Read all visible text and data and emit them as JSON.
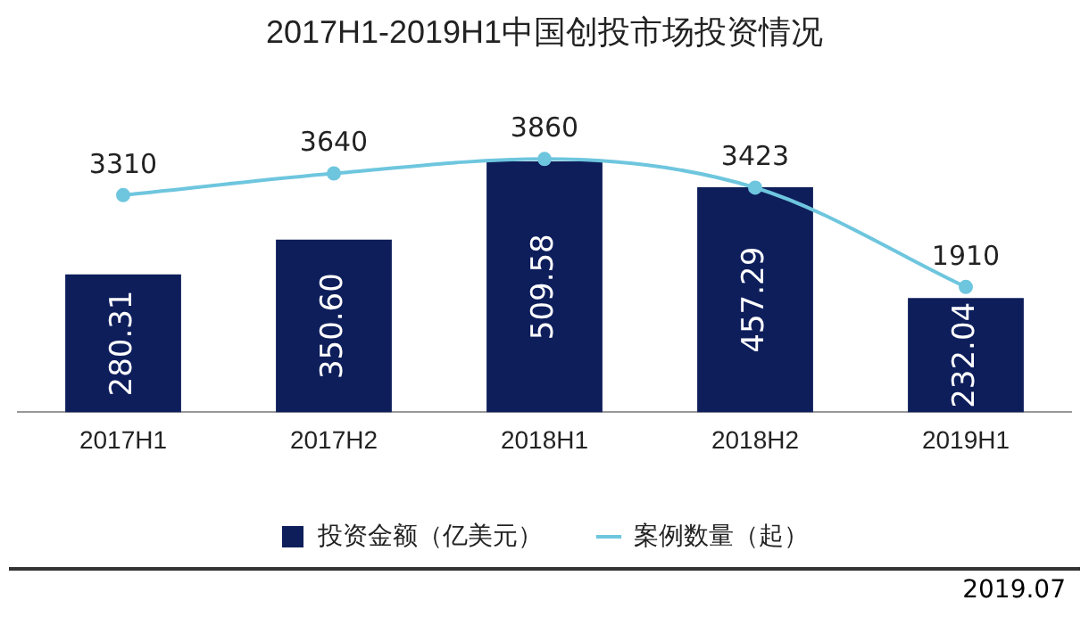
{
  "chart_data": {
    "type": "bar",
    "title": "2017H1-2019H1中国创投市场投资情况",
    "categories": [
      "2017H1",
      "2017H2",
      "2018H1",
      "2018H2",
      "2019H1"
    ],
    "series": [
      {
        "name": "投资金额（亿美元）",
        "color": "#0e1e5b",
        "values": [
          280.31,
          350.6,
          509.58,
          457.29,
          232.04
        ],
        "value_labels": [
          "280.31",
          "350.60",
          "509.58",
          "457.29",
          "232.04"
        ]
      },
      {
        "name": "案例数量（起）",
        "type": "line",
        "axis": "y2",
        "color": "#6ec6de",
        "values": [
          3310,
          3640,
          3860,
          3423,
          1910
        ]
      }
    ],
    "data_labels": true,
    "legend": "bottom",
    "marker": "circle",
    "grid": false,
    "annotations": [
      "2019.07"
    ]
  }
}
